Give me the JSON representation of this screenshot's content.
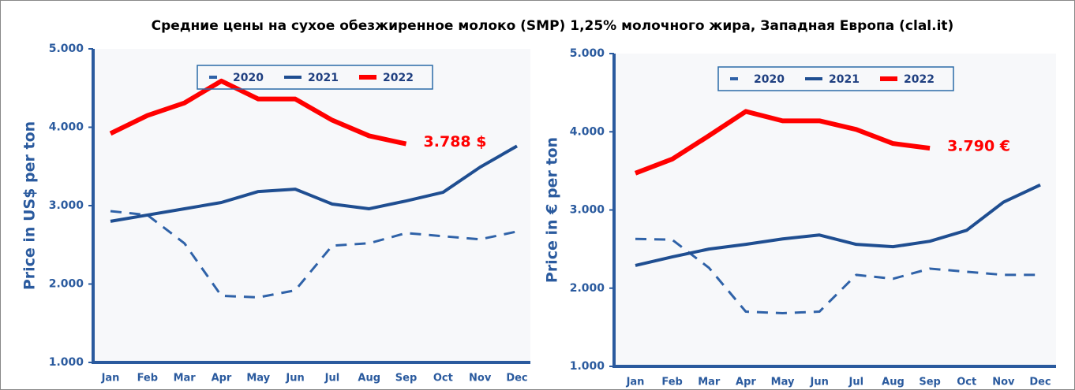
{
  "title": "Средние цены на сухое обезжиренное молоко (SMP) 1,25% молочного жира, Западная Европа (clal.it)",
  "chart_data": [
    {
      "type": "line",
      "y_label": "Price in US$ per ton",
      "annotation": "3.788 $",
      "categories": [
        "Jan",
        "Feb",
        "Mar",
        "Apr",
        "May",
        "Jun",
        "Jul",
        "Aug",
        "Sep",
        "Oct",
        "Nov",
        "Dec"
      ],
      "ylim": [
        1000,
        5000
      ],
      "yticks": [
        {
          "value": 1000,
          "label": "1.000"
        },
        {
          "value": 2000,
          "label": "2.000"
        },
        {
          "value": 3000,
          "label": "3.000"
        },
        {
          "value": 4000,
          "label": "4.000"
        },
        {
          "value": 5000,
          "label": "5.000"
        }
      ],
      "series": [
        {
          "name": "2020",
          "color": "#2f62a8",
          "dashed": true,
          "values": [
            2930,
            2880,
            2520,
            1850,
            1830,
            1920,
            2490,
            2520,
            2650,
            2610,
            2570,
            2670
          ]
        },
        {
          "name": "2021",
          "color": "#1f4e91",
          "dashed": false,
          "values": [
            2800,
            2880,
            2960,
            3040,
            3180,
            3210,
            3020,
            2960,
            3060,
            3170,
            3490,
            3760
          ]
        },
        {
          "name": "2022",
          "color": "#ff0000",
          "dashed": false,
          "values": [
            3920,
            4150,
            4310,
            4590,
            4360,
            4360,
            4090,
            3890,
            3788,
            null,
            null,
            null
          ]
        }
      ]
    },
    {
      "type": "line",
      "y_label": "Price in € per ton",
      "annotation": "3.790 €",
      "categories": [
        "Jan",
        "Feb",
        "Mar",
        "Apr",
        "May",
        "Jun",
        "Jul",
        "Aug",
        "Sep",
        "Oct",
        "Nov",
        "Dec"
      ],
      "ylim": [
        1000,
        5000
      ],
      "yticks": [
        {
          "value": 1000,
          "label": "1.000"
        },
        {
          "value": 2000,
          "label": "2.000"
        },
        {
          "value": 3000,
          "label": "3.000"
        },
        {
          "value": 4000,
          "label": "4.000"
        },
        {
          "value": 5000,
          "label": "5.000"
        }
      ],
      "series": [
        {
          "name": "2020",
          "color": "#2f62a8",
          "dashed": true,
          "values": [
            2630,
            2620,
            2260,
            1700,
            1680,
            1700,
            2170,
            2120,
            2250,
            2210,
            2170,
            2170
          ]
        },
        {
          "name": "2021",
          "color": "#1f4e91",
          "dashed": false,
          "values": [
            2290,
            2400,
            2500,
            2560,
            2630,
            2680,
            2560,
            2530,
            2600,
            2740,
            3100,
            3320
          ]
        },
        {
          "name": "2022",
          "color": "#ff0000",
          "dashed": false,
          "values": [
            3470,
            3650,
            3950,
            4260,
            4140,
            4140,
            4030,
            3850,
            3790,
            null,
            null,
            null
          ]
        }
      ]
    }
  ]
}
